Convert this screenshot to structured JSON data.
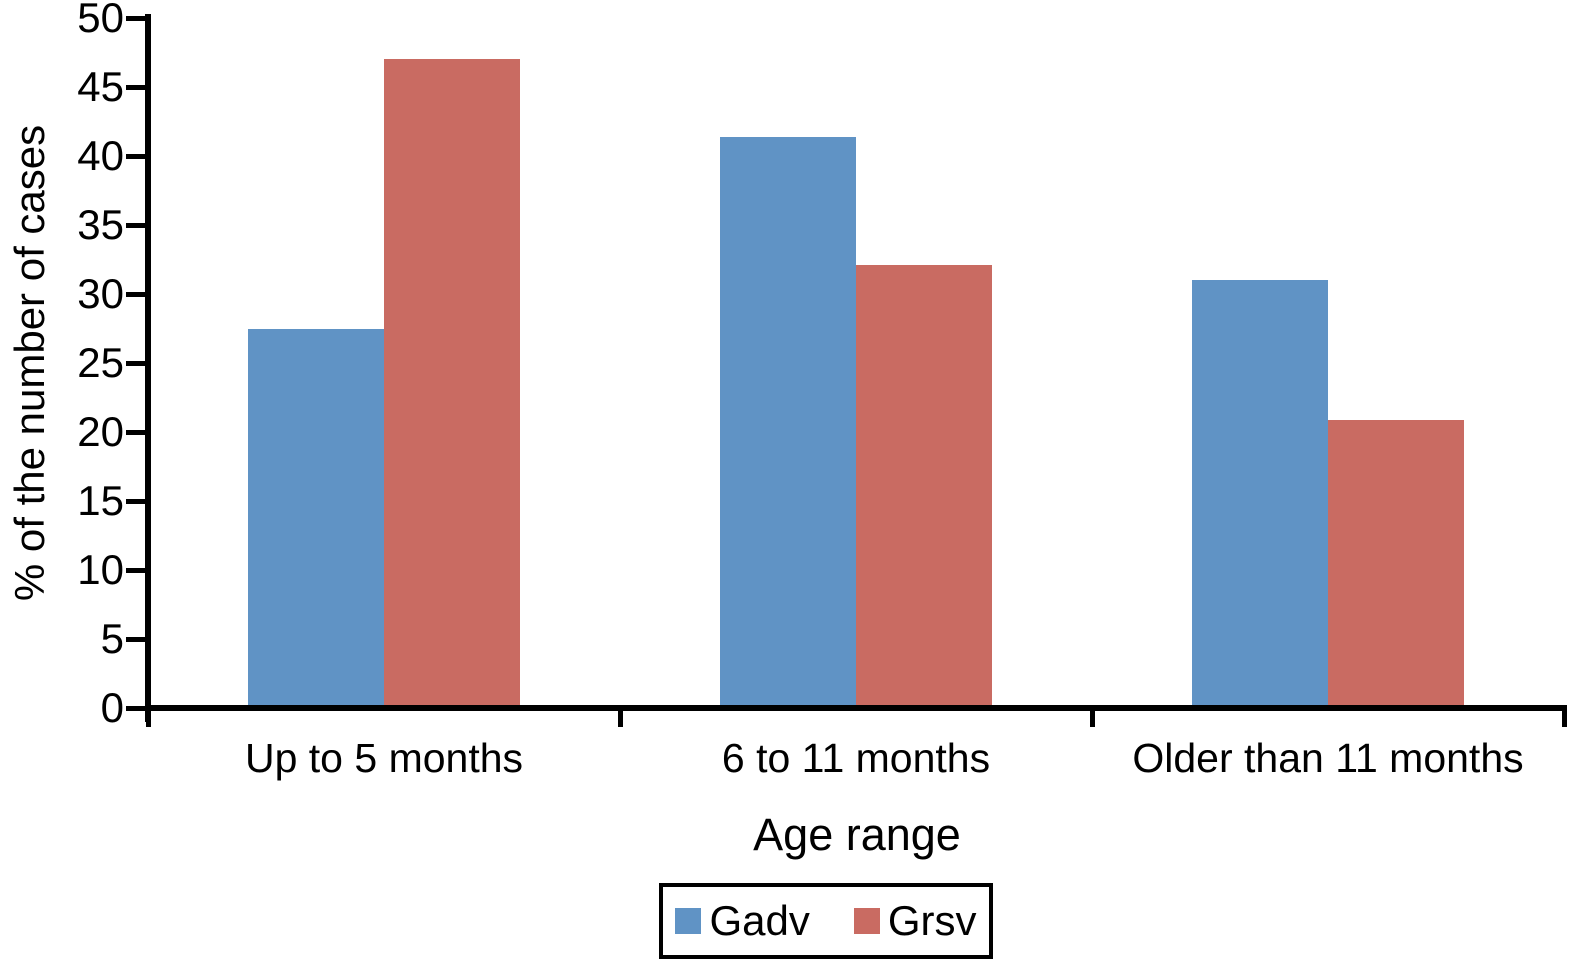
{
  "chart_data": {
    "type": "bar",
    "title": "",
    "xlabel": "Age range",
    "ylabel": "% of the number of cases",
    "categories": [
      "Up to 5 months",
      "6 to 11 months",
      "Older than 11 months"
    ],
    "series": [
      {
        "name": "Gadv",
        "color": "#6093c5",
        "values": [
          27.5,
          41.4,
          31.0
        ]
      },
      {
        "name": "Grsv",
        "color": "#c96b62",
        "values": [
          47.0,
          32.1,
          20.9
        ]
      }
    ],
    "ylim": [
      0,
      50
    ],
    "yticks": [
      0,
      5,
      10,
      15,
      20,
      25,
      30,
      35,
      40,
      45,
      50
    ],
    "grid": false,
    "legend_position": "bottom",
    "colors": {
      "axis": "#000000",
      "text": "#000000",
      "background": "#ffffff"
    }
  }
}
